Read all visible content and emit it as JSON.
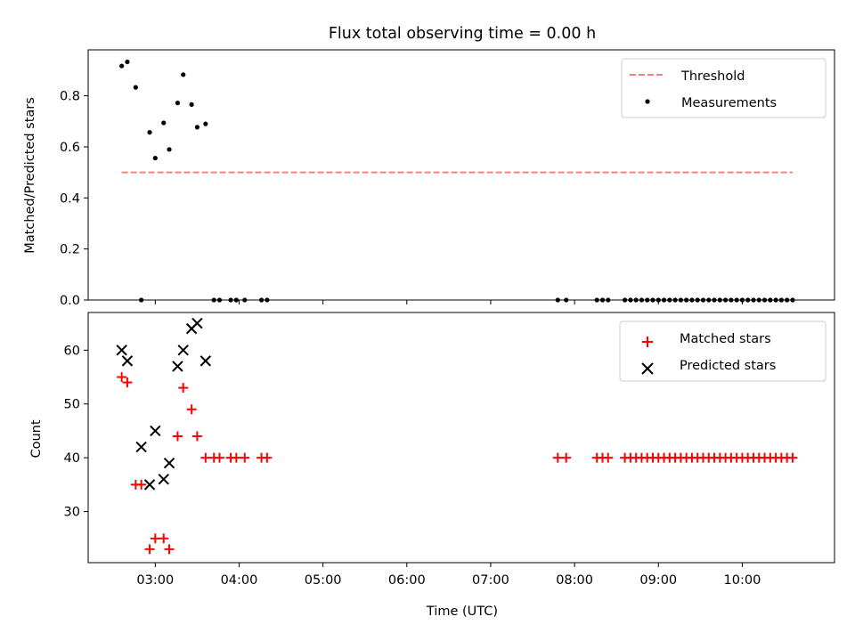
{
  "figure": {
    "title": "Flux total observing time = 0.00 h"
  },
  "colors": {
    "threshold": "#ff7f7f",
    "measurement": "#000000",
    "matched": "#ff0000",
    "predicted": "#000000"
  },
  "chart_data": [
    {
      "type": "scatter",
      "panel": "top",
      "xlabel": "",
      "ylabel": "Matched/Predicted stars",
      "xlim": [
        "02:12",
        "11:06"
      ],
      "ylim": [
        0,
        0.98
      ],
      "yticks": [
        0.0,
        0.2,
        0.4,
        0.6,
        0.8
      ],
      "ytick_labels": [
        "0.0",
        "0.2",
        "0.4",
        "0.6",
        "0.8"
      ],
      "xtick_labels_visible": false,
      "grid": false,
      "legend_position": "top-right",
      "legend": [
        {
          "label": "Threshold",
          "marker": "dashed-line"
        },
        {
          "label": "Measurements",
          "marker": "dot"
        }
      ],
      "threshold": {
        "name": "Threshold",
        "y": 0.5,
        "x_from": "02:36",
        "x_to": "10:36"
      },
      "series": [
        {
          "name": "Measurements",
          "x": [
            "02:36",
            "02:40",
            "02:46",
            "02:50",
            "02:56",
            "03:00",
            "03:06",
            "03:10",
            "03:16",
            "03:20",
            "03:26",
            "03:30",
            "03:36",
            "03:42",
            "03:46",
            "03:54",
            "03:58",
            "04:04",
            "04:16",
            "04:20",
            "07:48",
            "07:54",
            "08:16",
            "08:20",
            "08:24",
            "08:36",
            "08:40",
            "08:44",
            "08:48",
            "08:52",
            "08:56",
            "09:00",
            "09:04",
            "09:08",
            "09:12",
            "09:16",
            "09:20",
            "09:24",
            "09:28",
            "09:32",
            "09:36",
            "09:40",
            "09:44",
            "09:48",
            "09:52",
            "09:56",
            "10:00",
            "10:04",
            "10:08",
            "10:12",
            "10:16",
            "10:20",
            "10:24",
            "10:28",
            "10:32",
            "10:36"
          ],
          "y": [
            0.917,
            0.933,
            0.833,
            0.0,
            0.657,
            0.556,
            0.694,
            0.59,
            0.772,
            0.883,
            0.766,
            0.677,
            0.69,
            0.0,
            0.0,
            0.0,
            0.0,
            0.0,
            0.0,
            0.0,
            0.0,
            0.0,
            0.0,
            0.0,
            0.0,
            0.0,
            0.0,
            0.0,
            0.0,
            0.0,
            0.0,
            0.0,
            0.0,
            0.0,
            0.0,
            0.0,
            0.0,
            0.0,
            0.0,
            0.0,
            0.0,
            0.0,
            0.0,
            0.0,
            0.0,
            0.0,
            0.0,
            0.0,
            0.0,
            0.0,
            0.0,
            0.0,
            0.0,
            0.0,
            0.0,
            0.0
          ]
        }
      ]
    },
    {
      "type": "scatter",
      "panel": "bottom",
      "xlabel": "Time (UTC)",
      "ylabel": "Count",
      "xlim": [
        "02:12",
        "11:06"
      ],
      "ylim": [
        20.5,
        67.0
      ],
      "yticks": [
        30,
        40,
        50,
        60
      ],
      "ytick_labels": [
        "30",
        "40",
        "50",
        "60"
      ],
      "xticks": [
        "03:00",
        "04:00",
        "05:00",
        "06:00",
        "07:00",
        "08:00",
        "09:00",
        "10:00"
      ],
      "xtick_labels": [
        "03:00",
        "04:00",
        "05:00",
        "06:00",
        "07:00",
        "08:00",
        "09:00",
        "10:00"
      ],
      "grid": false,
      "legend_position": "top-right",
      "legend": [
        {
          "label": "Matched stars",
          "marker": "plus"
        },
        {
          "label": "Predicted stars",
          "marker": "x"
        }
      ],
      "series": [
        {
          "name": "Matched stars",
          "x": [
            "02:36",
            "02:40",
            "02:46",
            "02:50",
            "02:56",
            "03:00",
            "03:06",
            "03:10",
            "03:16",
            "03:20",
            "03:26",
            "03:30",
            "03:36",
            "03:42",
            "03:46",
            "03:54",
            "03:58",
            "04:04",
            "04:16",
            "04:20",
            "07:48",
            "07:54",
            "08:16",
            "08:20",
            "08:24",
            "08:36",
            "08:40",
            "08:44",
            "08:48",
            "08:52",
            "08:56",
            "09:00",
            "09:04",
            "09:08",
            "09:12",
            "09:16",
            "09:20",
            "09:24",
            "09:28",
            "09:32",
            "09:36",
            "09:40",
            "09:44",
            "09:48",
            "09:52",
            "09:56",
            "10:00",
            "10:04",
            "10:08",
            "10:12",
            "10:16",
            "10:20",
            "10:24",
            "10:28",
            "10:32",
            "10:36"
          ],
          "y": [
            55,
            54,
            35,
            35,
            23,
            25,
            25,
            23,
            44,
            53,
            49,
            44,
            40,
            40,
            40,
            40,
            40,
            40,
            40,
            40,
            40,
            40,
            40,
            40,
            40,
            40,
            40,
            40,
            40,
            40,
            40,
            40,
            40,
            40,
            40,
            40,
            40,
            40,
            40,
            40,
            40,
            40,
            40,
            40,
            40,
            40,
            40,
            40,
            40,
            40,
            40,
            40,
            40,
            40,
            40,
            40
          ]
        },
        {
          "name": "Predicted stars",
          "x": [
            "02:36",
            "02:40",
            "02:50",
            "02:56",
            "03:00",
            "03:06",
            "03:10",
            "03:16",
            "03:20",
            "03:26",
            "03:30",
            "03:36"
          ],
          "y": [
            60,
            58,
            42,
            35,
            45,
            36,
            39,
            57,
            60,
            64,
            65,
            58
          ]
        }
      ]
    }
  ]
}
